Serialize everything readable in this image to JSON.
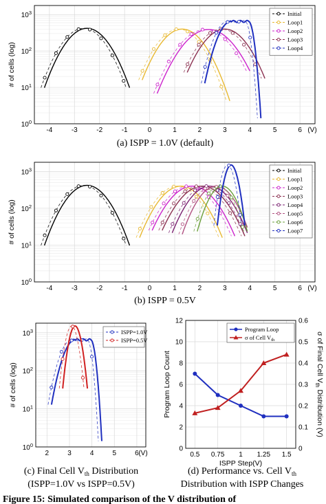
{
  "chart_data": [
    {
      "id": "a",
      "type": "line",
      "caption": "(a) ISPP = 1.0V (default)",
      "ylabel": "# of cells (log)",
      "x_unit": "(V)",
      "xlim": [
        -4.6,
        6.6
      ],
      "ylim_log10": [
        0,
        3.25
      ],
      "yscale": "log",
      "xticks": [
        -4,
        -3,
        -2,
        -1,
        0,
        1,
        2,
        3,
        4,
        5,
        6
      ],
      "yticks": [
        "10^0",
        "10^1",
        "10^2",
        "10^3"
      ],
      "grid": true,
      "legend_position": "top-right",
      "series": [
        {
          "name": "Initial",
          "color": "#000000",
          "marker": "circle",
          "mu": -2.5,
          "sigma": 0.62,
          "peak": 420,
          "range": [
            -4.2,
            -0.8
          ]
        },
        {
          "name": "Loop1",
          "color": "#e8b830",
          "marker": "circle",
          "mu": 1.3,
          "sigma": 0.63,
          "peak": 400,
          "range": [
            -0.3,
            3.2
          ]
        },
        {
          "name": "Loop2",
          "color": "#cc22cc",
          "marker": "circle",
          "mu": 2.35,
          "sigma": 0.72,
          "peak": 390,
          "range": [
            0.3,
            4.0
          ]
        },
        {
          "name": "Loop3",
          "color": "#8b3050",
          "marker": "circle",
          "mu": 3.0,
          "sigma": 0.64,
          "peak": 400,
          "range": [
            1.5,
            4.6
          ]
        },
        {
          "name": "Loop4",
          "color": "#1f2fbf",
          "marker": "circle",
          "mu": 3.35,
          "sigma": 0.5,
          "peak": 650,
          "range": [
            2.2,
            4.6
          ],
          "flat_top": [
            3.25,
            3.95
          ]
        }
      ]
    },
    {
      "id": "b",
      "type": "line",
      "caption": "(b) ISPP = 0.5V",
      "ylabel": "# of cells (log)",
      "x_unit": "(V)",
      "xlim": [
        -4.6,
        6.6
      ],
      "ylim_log10": [
        0,
        3.25
      ],
      "yscale": "log",
      "xticks": [
        -4,
        -3,
        -2,
        -1,
        0,
        1,
        2,
        3,
        4,
        5,
        6
      ],
      "yticks": [
        "10^0",
        "10^1",
        "10^2",
        "10^3"
      ],
      "grid": true,
      "legend_position": "top-right",
      "series": [
        {
          "name": "Initial",
          "color": "#000000",
          "marker": "circle",
          "mu": -2.5,
          "sigma": 0.62,
          "peak": 420,
          "range": [
            -4.2,
            -0.8
          ]
        },
        {
          "name": "Loop1",
          "color": "#e8b830",
          "marker": "circle",
          "mu": 1.25,
          "sigma": 0.65,
          "peak": 400,
          "range": [
            -0.4,
            2.9
          ]
        },
        {
          "name": "Loop2",
          "color": "#cc22cc",
          "marker": "circle",
          "mu": 1.7,
          "sigma": 0.68,
          "peak": 400,
          "range": [
            0.1,
            3.4
          ]
        },
        {
          "name": "Loop3",
          "color": "#8b3050",
          "marker": "circle",
          "mu": 2.1,
          "sigma": 0.68,
          "peak": 400,
          "range": [
            0.5,
            3.8
          ]
        },
        {
          "name": "Loop4",
          "color": "#7a2070",
          "marker": "circle",
          "mu": 2.4,
          "sigma": 0.62,
          "peak": 400,
          "range": [
            0.9,
            3.9
          ]
        },
        {
          "name": "Loop5",
          "color": "#b05080",
          "marker": "circle",
          "mu": 2.65,
          "sigma": 0.55,
          "peak": 400,
          "range": [
            1.3,
            3.9
          ]
        },
        {
          "name": "Loop6",
          "color": "#6a9f3a",
          "marker": "circle",
          "mu": 2.9,
          "sigma": 0.42,
          "peak": 400,
          "range": [
            1.9,
            3.9
          ]
        },
        {
          "name": "Loop7",
          "color": "#1f2fbf",
          "marker": "circle",
          "mu": 3.25,
          "sigma": 0.2,
          "peak": 1500,
          "range": [
            2.7,
            3.8
          ]
        }
      ]
    },
    {
      "id": "c",
      "type": "line",
      "caption_line1": "(c) Final Cell V",
      "caption_sub": "th",
      "caption_line1_tail": " Distribution",
      "caption_line2": "(ISPP=1.0V vs ISPP=0.5V)",
      "ylabel": "# of cells (log)",
      "x_unit": "(V)",
      "xlim": [
        1.5,
        6.4
      ],
      "ylim_log10": [
        0,
        3.25
      ],
      "yscale": "log",
      "xticks": [
        2,
        3,
        4,
        5,
        6
      ],
      "yticks": [
        "10^0",
        "10^1",
        "10^2",
        "10^3"
      ],
      "grid": true,
      "legend_position": "top-right",
      "series": [
        {
          "name": "ISPP=1.0V",
          "color": "#1f2fbf",
          "marker": "circle",
          "mu": 3.35,
          "sigma": 0.5,
          "peak": 650,
          "range": [
            2.2,
            4.6
          ],
          "flat_top": [
            3.25,
            3.95
          ]
        },
        {
          "name": "ISPP=0.5V",
          "color": "#d02020",
          "marker": "circle",
          "mu": 3.25,
          "sigma": 0.2,
          "peak": 1500,
          "range": [
            2.7,
            3.8
          ]
        }
      ]
    },
    {
      "id": "d",
      "type": "line",
      "caption_line1": "(d) Performance vs. Cell V",
      "caption_sub": "th",
      "caption_line2": "Distribution with ISPP Changes",
      "xlabel": "ISPP Step(V)",
      "ylabel": "Program Loop Count",
      "ylabel_right": "σ of Final Cell V",
      "ylabel_right_sub": "th",
      "ylabel_right_tail": " Distribution (V)",
      "x": [
        0.5,
        0.75,
        1,
        1.25,
        1.5
      ],
      "xticks": [
        "0.5",
        "0.75",
        "1",
        "1.25",
        "1.5"
      ],
      "xlim": [
        0.4,
        1.6
      ],
      "ylim": [
        0,
        12
      ],
      "yticks": [
        "0",
        "2",
        "4",
        "6",
        "8",
        "10",
        "12"
      ],
      "ylim_right": [
        0,
        0.6
      ],
      "yticks_right": [
        "0",
        "0.1",
        "0.2",
        "0.3",
        "0.4",
        "0.5",
        "0.6"
      ],
      "grid": true,
      "legend_position": "top-right",
      "series": [
        {
          "name": "Program Loop",
          "axis": "left",
          "color": "#1f2fbf",
          "marker": "circle",
          "values": [
            7,
            5,
            4,
            3,
            3
          ]
        },
        {
          "name": "σ of Cell V",
          "name_sub": "th",
          "axis": "right",
          "color": "#c02020",
          "marker": "triangle",
          "values": [
            0.165,
            0.19,
            0.27,
            0.4,
            0.44
          ]
        }
      ]
    }
  ],
  "footer_text": "Figure 15: Simulated comparison of the V  distribution of"
}
